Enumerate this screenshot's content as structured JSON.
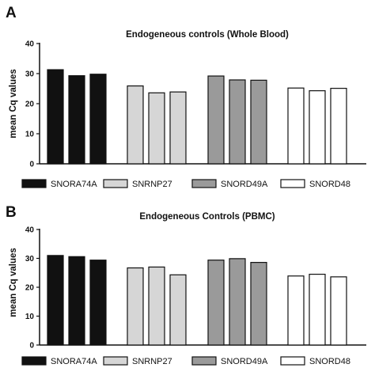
{
  "chart_data": [
    {
      "type": "bar",
      "panel_label": "A",
      "title": "Endogeneous controls  (Whole Blood)",
      "ylabel": "mean Cq values",
      "ylim": [
        0,
        40
      ],
      "yticks": [
        0,
        10,
        20,
        30,
        40
      ],
      "legend_placement": "bottom",
      "series": [
        {
          "name": "SNORA74A",
          "color": "#111111",
          "values": [
            31.3,
            29.3,
            29.8
          ]
        },
        {
          "name": "SNRNP27",
          "color": "#d6d6d6",
          "values": [
            25.9,
            23.6,
            23.9
          ]
        },
        {
          "name": "SNORD49A",
          "color": "#9a9a9a",
          "values": [
            29.2,
            27.9,
            27.8
          ]
        },
        {
          "name": "SNORD48",
          "color": "#ffffff",
          "values": [
            25.2,
            24.3,
            25.1
          ]
        }
      ]
    },
    {
      "type": "bar",
      "panel_label": "B",
      "title": "Endogeneous Controls (PBMC)",
      "ylabel": "mean Cq values",
      "ylim": [
        0,
        40
      ],
      "yticks": [
        0,
        10,
        20,
        30,
        40
      ],
      "legend_placement": "bottom",
      "series": [
        {
          "name": "SNORA74A",
          "color": "#111111",
          "values": [
            31.0,
            30.6,
            29.4
          ]
        },
        {
          "name": "SNRNP27",
          "color": "#d6d6d6",
          "values": [
            26.7,
            27.0,
            24.3
          ]
        },
        {
          "name": "SNORD49A",
          "color": "#9a9a9a",
          "values": [
            29.4,
            29.9,
            28.6
          ]
        },
        {
          "name": "SNORD48",
          "color": "#ffffff",
          "values": [
            23.9,
            24.5,
            23.6
          ]
        }
      ]
    }
  ]
}
